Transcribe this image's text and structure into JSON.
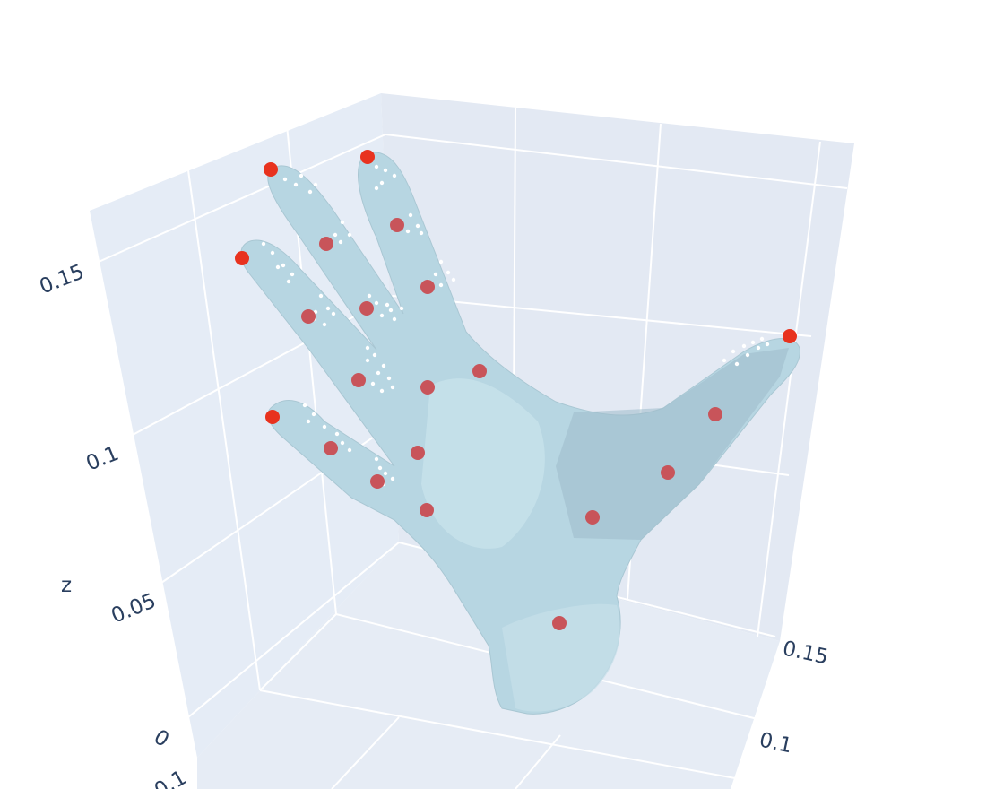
{
  "chart_data": {
    "type": "scatter",
    "subtype": "3d-scene-mesh-with-markers",
    "title": "",
    "scene": {
      "zaxis": {
        "title": "z",
        "ticks": [
          "0",
          "0.05",
          "0.1",
          "0.15"
        ]
      },
      "yaxis": {
        "title": "",
        "ticks": [
          "0.1",
          "0.15"
        ]
      },
      "xaxis": {
        "title": "",
        "ticks": [
          "0.1"
        ]
      },
      "grid": true,
      "background": "#e5ecf6",
      "gridcolor": "#ffffff"
    },
    "mesh": {
      "name": "hand",
      "color": "#add8e6",
      "opacity": 0.6
    },
    "series": [
      {
        "kind": "fingertip-markers",
        "color": "#e8321e",
        "count": 6
      },
      {
        "kind": "joint-markers",
        "color": "#c8545a",
        "count": 15
      },
      {
        "kind": "contact-points",
        "color": "#ffffff",
        "count": 110
      }
    ]
  }
}
